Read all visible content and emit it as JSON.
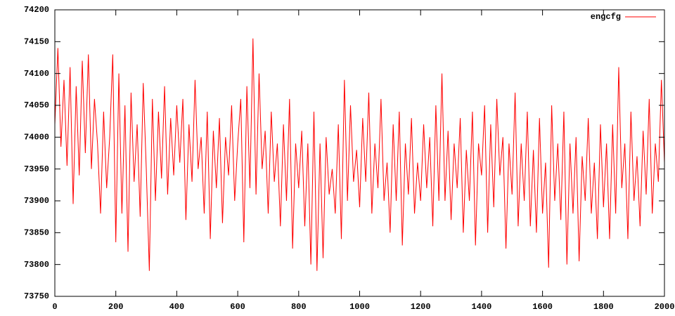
{
  "chart_data": {
    "type": "line",
    "x": [
      0,
      10,
      20,
      30,
      40,
      50,
      60,
      70,
      80,
      90,
      100,
      110,
      120,
      130,
      140,
      150,
      160,
      170,
      180,
      190,
      200,
      210,
      220,
      230,
      240,
      250,
      260,
      270,
      280,
      290,
      300,
      310,
      320,
      330,
      340,
      350,
      360,
      370,
      380,
      390,
      400,
      410,
      420,
      430,
      440,
      450,
      460,
      470,
      480,
      490,
      500,
      510,
      520,
      530,
      540,
      550,
      560,
      570,
      580,
      590,
      600,
      610,
      620,
      630,
      640,
      650,
      660,
      670,
      680,
      690,
      700,
      710,
      720,
      730,
      740,
      750,
      760,
      770,
      780,
      790,
      800,
      810,
      820,
      830,
      840,
      850,
      860,
      870,
      880,
      890,
      900,
      910,
      920,
      930,
      940,
      950,
      960,
      970,
      980,
      990,
      1000,
      1010,
      1020,
      1030,
      1040,
      1050,
      1060,
      1070,
      1080,
      1090,
      1100,
      1110,
      1120,
      1130,
      1140,
      1150,
      1160,
      1170,
      1180,
      1190,
      1200,
      1210,
      1220,
      1230,
      1240,
      1250,
      1260,
      1270,
      1280,
      1290,
      1300,
      1310,
      1320,
      1330,
      1340,
      1350,
      1360,
      1370,
      1380,
      1390,
      1400,
      1410,
      1420,
      1430,
      1440,
      1450,
      1460,
      1470,
      1480,
      1490,
      1500,
      1510,
      1520,
      1530,
      1540,
      1550,
      1560,
      1570,
      1580,
      1590,
      1600,
      1610,
      1620,
      1630,
      1640,
      1650,
      1660,
      1670,
      1680,
      1690,
      1700,
      1710,
      1720,
      1730,
      1740,
      1750,
      1760,
      1770,
      1780,
      1790,
      1800,
      1810,
      1820,
      1830,
      1840,
      1850,
      1860,
      1870,
      1880,
      1890,
      1900,
      1910,
      1920,
      1930,
      1940,
      1950,
      1960,
      1970,
      1980,
      1990,
      2000
    ],
    "series": [
      {
        "name": "engcfg",
        "color": "#ff0000",
        "values": [
          74020,
          74140,
          73985,
          74090,
          73955,
          74110,
          73895,
          74080,
          73940,
          74120,
          73975,
          74130,
          73950,
          74060,
          73990,
          73880,
          74040,
          73920,
          74000,
          74130,
          73835,
          74100,
          73880,
          74050,
          73820,
          74070,
          73930,
          74020,
          73875,
          74085,
          73950,
          73790,
          74060,
          73900,
          74040,
          73935,
          74080,
          73910,
          74030,
          73940,
          74050,
          73960,
          74060,
          73870,
          74020,
          73930,
          74090,
          73950,
          74000,
          73880,
          74040,
          73840,
          74010,
          73920,
          74030,
          73865,
          74000,
          73940,
          74050,
          73900,
          73990,
          74060,
          73835,
          74080,
          73920,
          74155,
          73910,
          74100,
          73950,
          74010,
          73880,
          74040,
          73930,
          73990,
          73860,
          74020,
          73900,
          74060,
          73825,
          73990,
          73920,
          74010,
          73860,
          73990,
          73800,
          74040,
          73790,
          73990,
          73810,
          74000,
          73910,
          73950,
          73880,
          74020,
          73840,
          74090,
          73900,
          74050,
          73930,
          73980,
          73890,
          74030,
          73930,
          74070,
          73880,
          73990,
          73920,
          74060,
          73900,
          73960,
          73850,
          74020,
          73900,
          74040,
          73830,
          73990,
          73910,
          74030,
          73880,
          73960,
          73900,
          74020,
          73920,
          74000,
          73860,
          74050,
          73900,
          74100,
          73900,
          74010,
          73870,
          73990,
          73920,
          74030,
          73850,
          73980,
          73900,
          74040,
          73830,
          73990,
          73940,
          74050,
          73850,
          74020,
          73890,
          74060,
          73940,
          74000,
          73825,
          73990,
          73910,
          74070,
          73860,
          73990,
          73900,
          74040,
          73860,
          73980,
          73850,
          74030,
          73880,
          73960,
          73795,
          74050,
          73900,
          73990,
          73870,
          74040,
          73800,
          73990,
          73880,
          74000,
          73805,
          73970,
          73900,
          74030,
          73880,
          73960,
          73840,
          74020,
          73890,
          73990,
          73840,
          74020,
          73880,
          74110,
          73920,
          73990,
          73840,
          74040,
          73900,
          73970,
          73860,
          74010,
          73910,
          74060,
          73880,
          73990,
          73930,
          74090,
          73960
        ]
      }
    ],
    "xlim": [
      0,
      2000
    ],
    "xticks": [
      0,
      200,
      400,
      600,
      800,
      1000,
      1200,
      1400,
      1600,
      1800,
      2000
    ],
    "ylim": [
      73750,
      74200
    ],
    "yticks": [
      73750,
      73800,
      73850,
      73900,
      73950,
      74000,
      74050,
      74100,
      74150,
      74200
    ],
    "legend": "top-right",
    "grid": false
  }
}
